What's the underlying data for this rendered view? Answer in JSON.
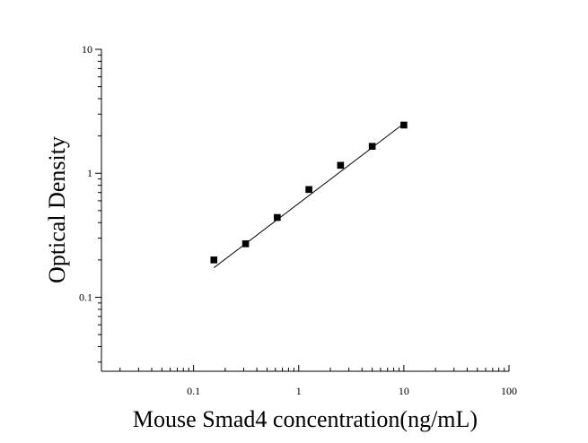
{
  "chart_data": {
    "type": "scatter",
    "title": "",
    "xlabel": "Mouse Smad4 concentration(ng/mL)",
    "ylabel": "Optical Density",
    "x_scale": "log",
    "y_scale": "log",
    "xlim": [
      0.0133,
      100
    ],
    "ylim": [
      0.0253,
      10
    ],
    "x_ticks": [
      {
        "value": 0.1,
        "label": "0.1"
      },
      {
        "value": 1,
        "label": "1"
      },
      {
        "value": 10,
        "label": "10"
      },
      {
        "value": 100,
        "label": "100"
      }
    ],
    "y_ticks": [
      {
        "value": 0.1,
        "label": "0.1"
      },
      {
        "value": 1,
        "label": "1"
      },
      {
        "value": 10,
        "label": "10"
      }
    ],
    "grid": false,
    "legend": "none",
    "series": [
      {
        "marker": "square",
        "color": "#000000",
        "points": [
          {
            "x": 0.156,
            "y": 0.2
          },
          {
            "x": 0.3125,
            "y": 0.27
          },
          {
            "x": 0.625,
            "y": 0.44
          },
          {
            "x": 1.25,
            "y": 0.74
          },
          {
            "x": 2.5,
            "y": 1.16
          },
          {
            "x": 5,
            "y": 1.65
          },
          {
            "x": 10,
            "y": 2.45
          }
        ]
      }
    ],
    "fit_line": {
      "x_start": 0.156,
      "y_start": 0.173,
      "x_end": 10,
      "y_end": 2.52,
      "color": "#000000"
    }
  }
}
